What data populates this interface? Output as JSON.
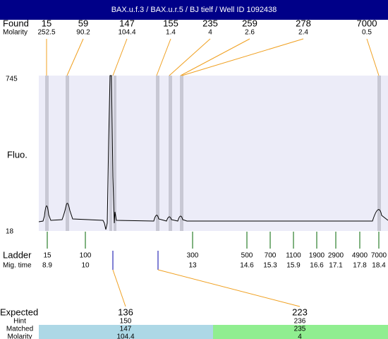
{
  "title": "BAX.u.f.3 / BAX.u.r.5 / BJ tielf / Well ID 1092438",
  "found": {
    "label": "Found",
    "sublabel": "Molarity",
    "peaks": [
      {
        "size": "15",
        "molarity": "252.5"
      },
      {
        "size": "59",
        "molarity": "90.2"
      },
      {
        "size": "147",
        "molarity": "104.4"
      },
      {
        "size": "155",
        "molarity": "1.4"
      },
      {
        "size": "235",
        "molarity": "4"
      },
      {
        "size": "259",
        "molarity": "2.6"
      },
      {
        "size": "278",
        "molarity": "2.4"
      },
      {
        "size": "7000",
        "molarity": "0.5"
      }
    ]
  },
  "plot": {
    "ymax": "745",
    "ymin": "18",
    "ylabel": "Fluo."
  },
  "ladder": {
    "label": "Ladder",
    "sublabel": "Mig. time",
    "entries": [
      {
        "size": "15",
        "time": "8.9"
      },
      {
        "size": "100",
        "time": "10"
      },
      {
        "size": "300",
        "time": "13"
      },
      {
        "size": "500",
        "time": "14.6"
      },
      {
        "size": "700",
        "time": "15.3"
      },
      {
        "size": "1100",
        "time": "15.9"
      },
      {
        "size": "1900",
        "time": "16.6"
      },
      {
        "size": "2900",
        "time": "17.1"
      },
      {
        "size": "4900",
        "time": "17.8"
      },
      {
        "size": "7000",
        "time": "18.4"
      }
    ]
  },
  "expected": {
    "labels": [
      "Expected",
      "Hint",
      "Matched",
      "Molarity"
    ],
    "columns": [
      {
        "expected": "136",
        "hint": "150",
        "matched": "147",
        "molarity": "104.4"
      },
      {
        "expected": "223",
        "hint": "236",
        "matched": "235",
        "molarity": "4"
      }
    ]
  }
}
